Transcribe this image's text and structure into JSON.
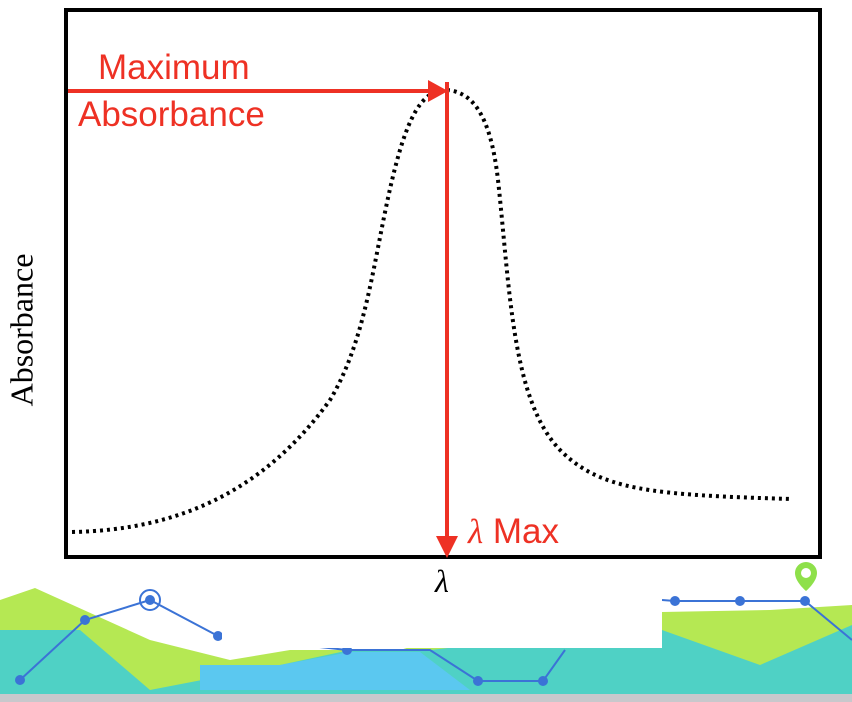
{
  "diagram": {
    "y_axis_label": "Absorbance",
    "x_axis_label": "λ",
    "max_label_line1": "Maximum",
    "max_label_line2": "Absorbance",
    "lambda_symbol": "λ",
    "lambda_max_text": "Max"
  },
  "colors": {
    "annotation": "#ee3124",
    "curve": "#000000",
    "frame": "#000000",
    "bg_green": "#b5e853",
    "bg_teal": "#4fd1c5",
    "bg_cyan": "#5bc8f0",
    "bg_line": "#3b73d6"
  },
  "icons": [
    "map-pin-icon"
  ]
}
